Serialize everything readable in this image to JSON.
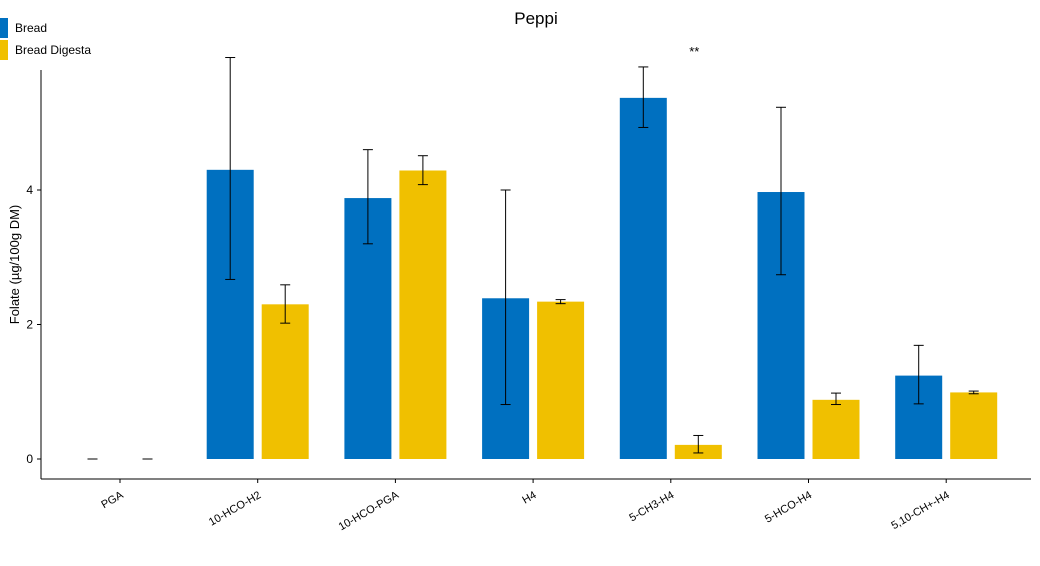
{
  "chart_data": {
    "type": "bar",
    "title": "Peppi",
    "xlabel": "",
    "ylabel": "Folate (µg/100g DM)",
    "ylim": [
      0,
      5.8
    ],
    "yticks": [
      0,
      2,
      4
    ],
    "categories": [
      "PGA",
      "10-HCO-H2",
      "10-HCO-PGA",
      "H4",
      "5-CH3-H4",
      "5-HCO-H4",
      "5,10-CH+-H4"
    ],
    "series": [
      {
        "name": "Bread",
        "color": "#0070C0",
        "values": [
          0,
          4.3,
          3.88,
          2.39,
          5.37,
          3.97,
          1.24
        ],
        "error_low": [
          0,
          2.67,
          3.2,
          0.81,
          4.93,
          2.74,
          0.82
        ],
        "error_high": [
          0,
          5.97,
          4.6,
          4.0,
          5.83,
          5.23,
          1.69
        ]
      },
      {
        "name": "Bread Digesta",
        "color": "#F0C000",
        "values": [
          0,
          2.3,
          4.29,
          2.34,
          0.21,
          0.88,
          0.99
        ],
        "error_low": [
          0,
          2.02,
          4.08,
          2.31,
          0.09,
          0.81,
          0.97
        ],
        "error_high": [
          0,
          2.59,
          4.51,
          2.37,
          0.35,
          0.98,
          1.01
        ]
      }
    ],
    "annotations": [
      {
        "text": "**",
        "category": "5-CH3-H4",
        "y": 6.05
      }
    ],
    "grid": false,
    "legend_position": "top-left"
  }
}
